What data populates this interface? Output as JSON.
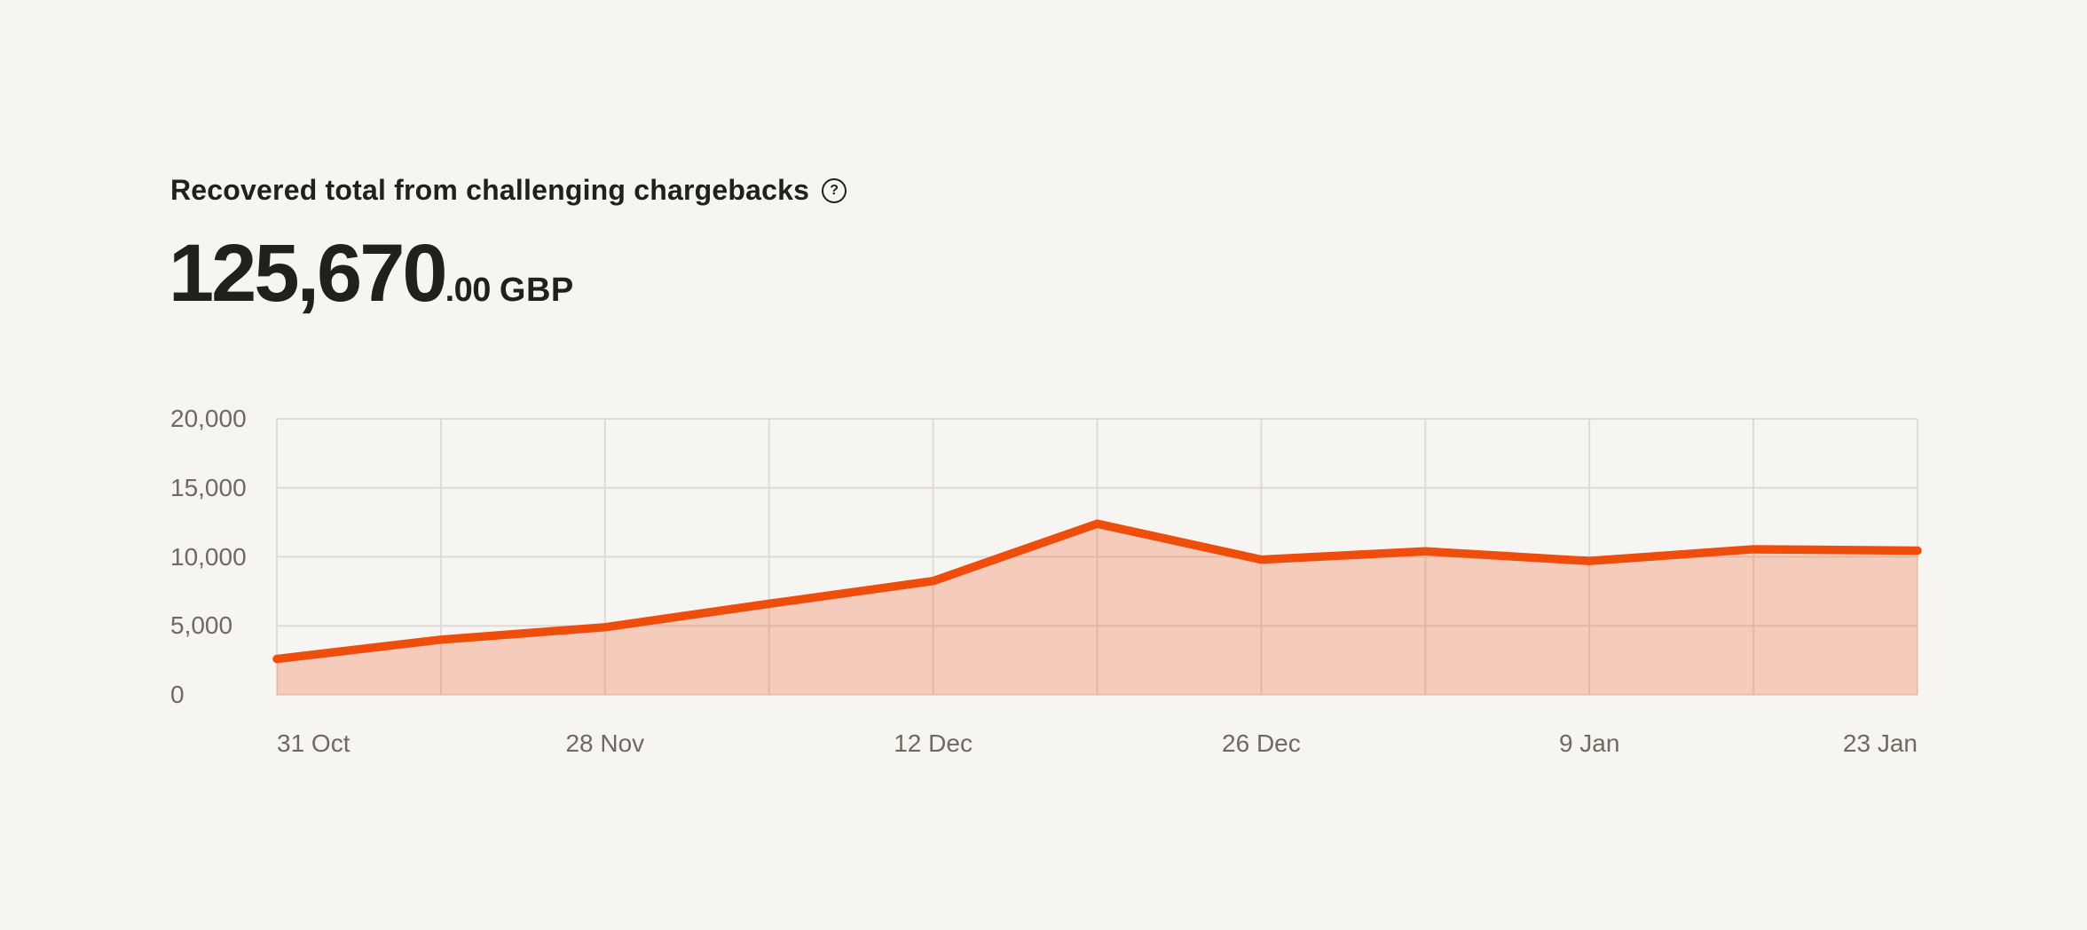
{
  "header": {
    "title": "Recovered total from challenging chargebacks",
    "help_glyph": "?",
    "amount_main": "125,670",
    "amount_minor": ".00",
    "amount_currency": "GBP"
  },
  "colors": {
    "background": "#f7f5f2",
    "text_primary": "#21201c",
    "axis_label": "#6f6960",
    "gridline": "#dedad4",
    "line": "#ee4d0c",
    "area_fill": "#ee4d0c",
    "area_opacity": 0.24
  },
  "chart_data": {
    "type": "area",
    "title": "Recovered total from challenging chargebacks",
    "unit": "GBP",
    "total_shown": "125,670.00 GBP",
    "num_points": 11,
    "values": [
      2600,
      4000,
      4900,
      6600,
      8250,
      12400,
      9800,
      10400,
      9700,
      10550,
      10450
    ],
    "x_tick_labels": [
      "31 Oct",
      "28 Nov",
      "12 Dec",
      "26 Dec",
      "9 Jan",
      "23 Jan"
    ],
    "x_tick_point_indices": [
      0,
      2,
      4,
      6,
      8,
      10
    ],
    "y_ticks": [
      {
        "value": 0,
        "label": "0"
      },
      {
        "value": 5000,
        "label": "5,000"
      },
      {
        "value": 10000,
        "label": "10,000"
      },
      {
        "value": 15000,
        "label": "15,000"
      },
      {
        "value": 20000,
        "label": "20,000"
      }
    ],
    "ylim": [
      0,
      20000
    ],
    "grid": true,
    "legend": "none"
  }
}
